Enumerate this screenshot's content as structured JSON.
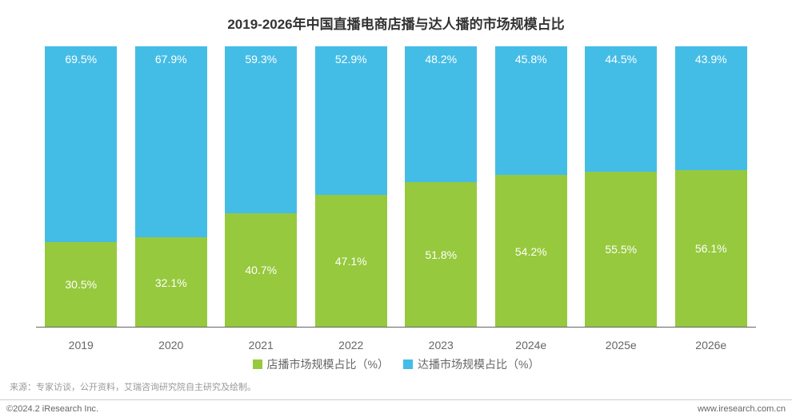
{
  "chart": {
    "type": "stacked-bar-100",
    "title": "2019-2026年中国直播电商店播与达人播的市场规模占比",
    "title_fontsize": 17,
    "title_color": "#333333",
    "categories": [
      "2019",
      "2020",
      "2021",
      "2022",
      "2023",
      "2024e",
      "2025e",
      "2026e"
    ],
    "series_bottom": {
      "name": "店播市场规模占比（%）",
      "color": "#96c93d",
      "values": [
        30.5,
        32.1,
        40.7,
        47.1,
        51.8,
        54.2,
        55.5,
        56.1
      ],
      "labels": [
        "30.5%",
        "32.1%",
        "40.7%",
        "47.1%",
        "51.8%",
        "54.2%",
        "55.5%",
        "56.1%"
      ]
    },
    "series_top": {
      "name": "达播市场规模占比（%）",
      "color": "#44bde6",
      "values": [
        69.5,
        67.9,
        59.3,
        52.9,
        48.2,
        45.8,
        44.5,
        43.9
      ],
      "labels": [
        "69.5%",
        "67.9%",
        "59.3%",
        "52.9%",
        "48.2%",
        "45.8%",
        "44.5%",
        "43.9%"
      ]
    },
    "bar_width_ratio": 0.8,
    "ylim": [
      0,
      100
    ],
    "data_label_fontsize": 14,
    "data_label_color": "#ffffff",
    "axis_label_fontsize": 14,
    "axis_label_color": "#666666",
    "axis_line_color": "#666666",
    "legend_fontsize": 14,
    "legend_color": "#666666",
    "background_color": "#ffffff"
  },
  "source": {
    "text": "来源：专家访谈，公开资料，艾瑞咨询研究院自主研究及绘制。",
    "fontsize": 11,
    "color": "#999999"
  },
  "footer": {
    "left": "©2024.2 iResearch Inc.",
    "right": "www.iresearch.com.cn",
    "fontsize": 11,
    "color": "#666666",
    "border_color": "#cccccc"
  }
}
